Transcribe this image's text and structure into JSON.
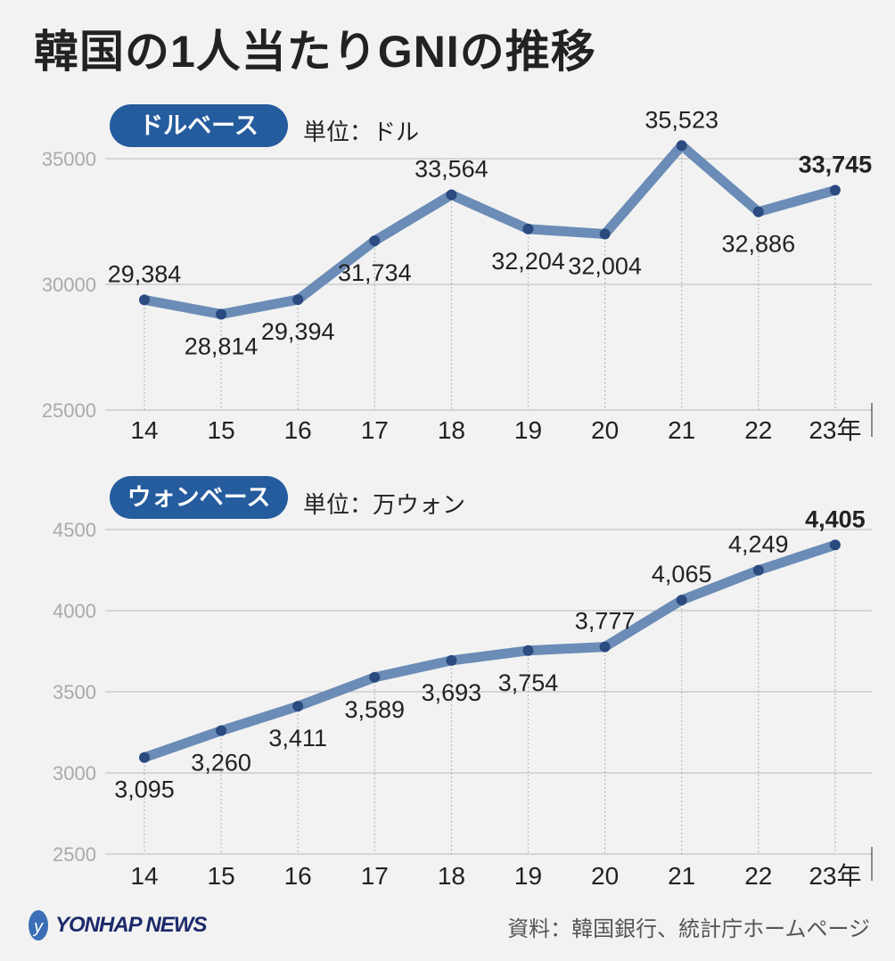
{
  "title": "韓国の1人当たりGNIの推移",
  "chart_data": [
    {
      "type": "line",
      "badge": "ドルベース",
      "unit": "単位：ドル",
      "categories": [
        "14",
        "15",
        "16",
        "17",
        "18",
        "19",
        "20",
        "21",
        "22",
        "23年"
      ],
      "values": [
        29384,
        28814,
        29394,
        31734,
        33564,
        32204,
        32004,
        35523,
        32886,
        33745
      ],
      "labels": [
        "29,384",
        "28,814",
        "29,394",
        "31,734",
        "33,564",
        "32,204",
        "32,004",
        "35,523",
        "32,886",
        "33,745"
      ],
      "yticks": [
        "25000",
        "30000",
        "35000"
      ],
      "ylim": [
        25000,
        35000
      ],
      "grid": true
    },
    {
      "type": "line",
      "badge": "ウォンベース",
      "unit": "単位：万ウォン",
      "categories": [
        "14",
        "15",
        "16",
        "17",
        "18",
        "19",
        "20",
        "21",
        "22",
        "23年"
      ],
      "values": [
        3095,
        3260,
        3411,
        3589,
        3693,
        3754,
        3777,
        4065,
        4249,
        4405
      ],
      "labels": [
        "3,095",
        "3,260",
        "3,411",
        "3,589",
        "3,693",
        "3,754",
        "3,777",
        "4,065",
        "4,249",
        "4,405"
      ],
      "yticks": [
        "2500",
        "3000",
        "3500",
        "4000",
        "4500"
      ],
      "ylim": [
        2500,
        4500
      ],
      "grid": true
    }
  ],
  "colors": {
    "line": "#6a8cb6",
    "point": "#2a4a80",
    "badge": "#245c9e",
    "grid": "#b8b8b8",
    "tick": "#aaaaaa"
  },
  "logo": "YONHAP NEWS",
  "source": "資料：韓国銀行、統計庁ホームページ"
}
